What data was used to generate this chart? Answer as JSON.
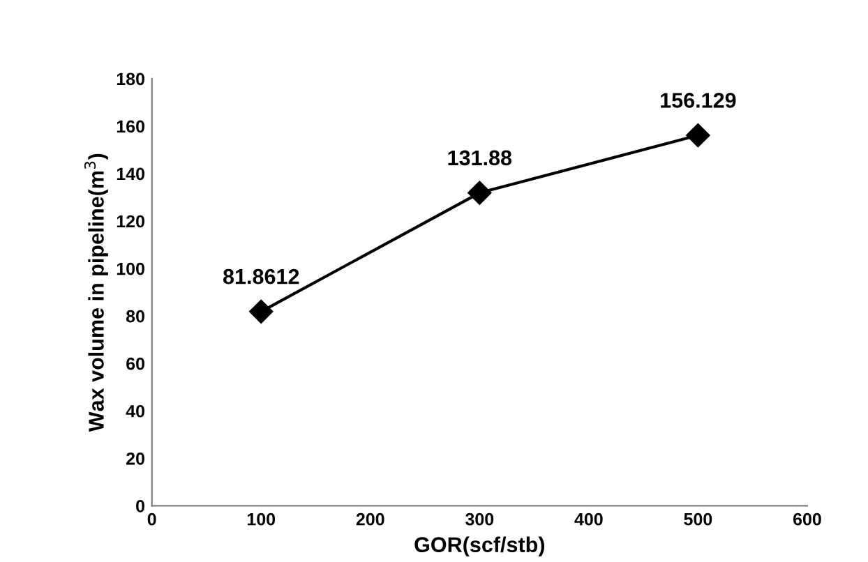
{
  "chart_data": {
    "type": "line",
    "xlabel": "GOR(scf/stb)",
    "ylabel": "Wax volume in pipeline(m$^{3}$)",
    "x": [
      100,
      300,
      500
    ],
    "series": [
      {
        "color": "#000000",
        "values": [
          81.8612,
          131.88,
          156.129
        ]
      }
    ],
    "xlim": [
      0,
      600
    ],
    "xticks": [
      0,
      100,
      200,
      300,
      400,
      500,
      600
    ],
    "ylim": [
      0,
      180
    ],
    "yticks": [
      0,
      20,
      40,
      60,
      80,
      100,
      120,
      140,
      160,
      180
    ],
    "grid": false,
    "legend": false,
    "marker": "diamond",
    "line_style": "solid",
    "data_labels": true
  }
}
